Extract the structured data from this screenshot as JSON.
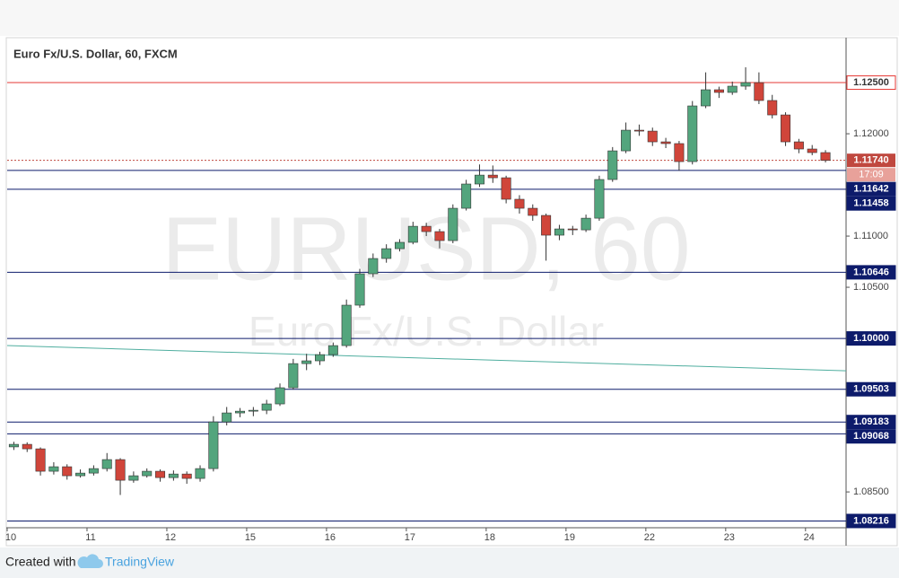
{
  "chart_data": {
    "type": "candlestick",
    "title": "Euro Fx/U.S. Dollar, 60, FXCM",
    "watermark": "EURUSD, 60",
    "watermark_subtitle": "Euro Fx/U.S. Dollar",
    "up_color": "#53a57d",
    "down_color": "#d0453a",
    "ylim": [
      1.0815,
      1.1293
    ],
    "yticks": [
      {
        "value": 1.12,
        "label": "1.12000"
      },
      {
        "value": 1.11,
        "label": "1.11000"
      },
      {
        "value": 1.105,
        "label": "1.10500"
      },
      {
        "value": 1.085,
        "label": "1.08500"
      }
    ],
    "categories": [
      "10",
      null,
      null,
      null,
      null,
      null,
      "11",
      null,
      null,
      null,
      null,
      null,
      "12",
      null,
      null,
      null,
      null,
      null,
      "15",
      null,
      null,
      null,
      null,
      null,
      "16",
      null,
      null,
      null,
      null,
      null,
      "17",
      null,
      null,
      null,
      null,
      null,
      "18",
      null,
      null,
      null,
      null,
      null,
      "19",
      null,
      null,
      null,
      null,
      null,
      "22",
      null,
      null,
      null,
      null,
      null,
      "23",
      null,
      null,
      null,
      null,
      null,
      "24",
      null
    ],
    "open": [
      1.0894,
      1.08965,
      1.08921,
      1.08702,
      1.08746,
      1.08658,
      1.08684,
      1.08728,
      1.08816,
      1.08614,
      1.08658,
      1.08702,
      1.0864,
      1.08675,
      1.08632,
      1.08728,
      1.09184,
      1.09272,
      1.09289,
      1.09298,
      1.0936,
      1.09518,
      1.09754,
      1.09781,
      1.09842,
      1.0993,
      1.10325,
      1.10632,
      1.10781,
      1.10877,
      1.10939,
      1.11096,
      1.11044,
      1.10956,
      1.11272,
      1.11509,
      1.11596,
      1.1157,
      1.1136,
      1.11272,
      1.11202,
      1.11009,
      1.1107,
      1.11061,
      1.11175,
      1.11553,
      1.11833,
      1.12035,
      1.12026,
      1.11921,
      1.11904,
      1.11728,
      1.12272,
      1.1243,
      1.12404,
      1.12465,
      1.125,
      1.12325,
      1.12184,
      1.11921,
      1.11851,
      1.11816
    ],
    "high": [
      1.0899,
      1.08985,
      1.08935,
      1.0879,
      1.0877,
      1.0872,
      1.0876,
      1.0888,
      1.0883,
      1.087,
      1.0873,
      1.0872,
      1.0871,
      1.087,
      1.0876,
      1.0924,
      1.0933,
      1.0932,
      1.0933,
      1.094,
      1.0956,
      1.098,
      1.0985,
      1.0987,
      1.0996,
      1.1038,
      1.1068,
      1.1083,
      1.1092,
      1.1097,
      1.1114,
      1.1113,
      1.1107,
      1.1131,
      1.1155,
      1.117,
      1.1169,
      1.1159,
      1.114,
      1.1131,
      1.1122,
      1.1111,
      1.111,
      1.1121,
      1.1159,
      1.1187,
      1.1211,
      1.1209,
      1.1206,
      1.1196,
      1.1193,
      1.1232,
      1.126,
      1.1246,
      1.1251,
      1.1265,
      1.126,
      1.1238,
      1.1221,
      1.1195,
      1.1189,
      1.1184
    ],
    "low": [
      1.0891,
      1.0889,
      1.0866,
      1.0867,
      1.0862,
      1.0864,
      1.0866,
      1.087,
      1.0847,
      1.0859,
      1.0864,
      1.086,
      1.0861,
      1.0858,
      1.086,
      1.087,
      1.0915,
      1.0923,
      1.0924,
      1.0926,
      1.0934,
      1.095,
      1.0969,
      1.0974,
      1.0982,
      1.0991,
      1.103,
      1.106,
      1.1074,
      1.1085,
      1.1092,
      1.11,
      1.1088,
      1.1093,
      1.1125,
      1.1148,
      1.1152,
      1.1132,
      1.1122,
      1.1115,
      1.1076,
      1.1096,
      1.1101,
      1.1104,
      1.1115,
      1.1153,
      1.1181,
      1.1198,
      1.1188,
      1.1186,
      1.1164,
      1.117,
      1.1225,
      1.1235,
      1.1238,
      1.1243,
      1.1229,
      1.1215,
      1.1188,
      1.1181,
      1.1179,
      1.1172
    ],
    "close": [
      1.08965,
      1.08921,
      1.08702,
      1.08746,
      1.08658,
      1.08684,
      1.08728,
      1.08816,
      1.08614,
      1.08658,
      1.08702,
      1.0864,
      1.08675,
      1.08632,
      1.08728,
      1.09184,
      1.09272,
      1.09289,
      1.09298,
      1.0936,
      1.09518,
      1.09754,
      1.09781,
      1.09842,
      1.0993,
      1.10325,
      1.10632,
      1.10781,
      1.10877,
      1.10939,
      1.11096,
      1.11044,
      1.10956,
      1.11272,
      1.11509,
      1.11596,
      1.1157,
      1.1136,
      1.11272,
      1.11202,
      1.11009,
      1.1107,
      1.11061,
      1.11175,
      1.11553,
      1.11833,
      1.12035,
      1.12026,
      1.11921,
      1.11904,
      1.11728,
      1.12272,
      1.1243,
      1.12404,
      1.12465,
      1.125,
      1.12325,
      1.12184,
      1.11921,
      1.11851,
      1.11816,
      1.1174
    ],
    "levels": [
      {
        "value": 1.125,
        "label": "1.12500",
        "color": "#e53935",
        "filled": false
      },
      {
        "value": 1.11642,
        "label": "1.11642",
        "color": "#0d1b6b",
        "filled": true
      },
      {
        "value": 1.11458,
        "label": "1.11458",
        "color": "#0d1b6b",
        "filled": true
      },
      {
        "value": 1.10646,
        "label": "1.10646",
        "color": "#0d1b6b",
        "filled": true
      },
      {
        "value": 1.1,
        "label": "1.10000",
        "color": "#0d1b6b",
        "filled": true
      },
      {
        "value": 1.09503,
        "label": "1.09503",
        "color": "#0d1b6b",
        "filled": true
      },
      {
        "value": 1.09183,
        "label": "1.09183",
        "color": "#0d1b6b",
        "filled": true
      },
      {
        "value": 1.09068,
        "label": "1.09068",
        "color": "#0d1b6b",
        "filled": true
      },
      {
        "value": 1.08216,
        "label": "1.08216",
        "color": "#0d1b6b",
        "filled": true
      }
    ],
    "current": {
      "value": 1.1174,
      "label": "1.11740",
      "countdown": "17:09",
      "color": "#c0483f"
    },
    "trendline": {
      "start": 1.0993,
      "end": 1.09684,
      "color": "#4fae9f"
    },
    "footer": {
      "created": "Created with",
      "brand": "TradingView"
    }
  }
}
